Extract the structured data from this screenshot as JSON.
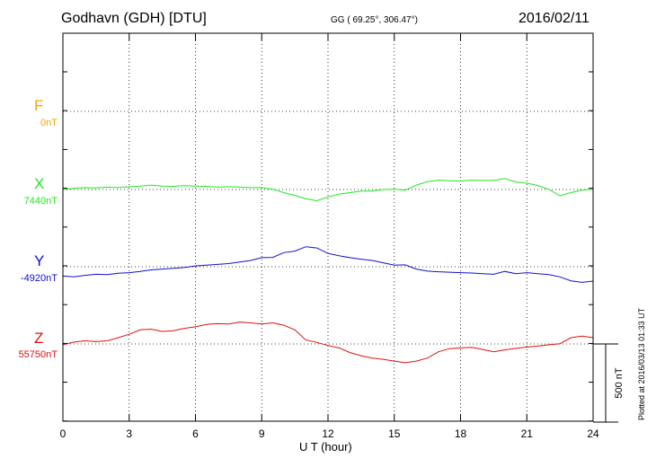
{
  "header": {
    "title": "Godhavn (GDH)  [DTU]",
    "coords": "GG ( 69.25°, 306.47°)",
    "date": "2016/02/11"
  },
  "footer": {
    "plotted": "Plotted at 2016/03/13 01:33 UT"
  },
  "colors": {
    "F": "#f5a500",
    "X": "#22e622",
    "Y": "#1010cc",
    "Z": "#e01010"
  },
  "chart_data": {
    "type": "line",
    "title": "Godhavn (GDH)  [DTU]",
    "xlabel": "U T (hour)",
    "ylabel": "",
    "xlim": [
      0,
      24
    ],
    "xticks": [
      0,
      3,
      6,
      9,
      12,
      15,
      18,
      21,
      24
    ],
    "grid": true,
    "scale_bar": {
      "label": "500 nT",
      "value_nT": 500
    },
    "series": [
      {
        "name": "F",
        "baseline_label": "0nT",
        "baseline_nT": 0,
        "x": [],
        "values": []
      },
      {
        "name": "X",
        "baseline_label": "7440nT",
        "baseline_nT": 7440,
        "x": [
          0,
          0.5,
          1,
          1.5,
          2,
          2.5,
          3,
          3.5,
          4,
          4.5,
          5,
          5.5,
          6,
          6.5,
          7,
          7.5,
          8,
          8.5,
          9,
          9.5,
          10,
          10.5,
          11,
          11.5,
          12,
          12.5,
          13,
          13.5,
          14,
          14.5,
          15,
          15.5,
          16,
          16.5,
          17,
          17.5,
          18,
          18.5,
          19,
          19.5,
          20,
          20.5,
          21,
          21.5,
          22,
          22.5,
          23,
          23.5,
          24
        ],
        "values": [
          7440,
          7448,
          7452,
          7450,
          7455,
          7452,
          7458,
          7462,
          7468,
          7462,
          7460,
          7465,
          7462,
          7460,
          7456,
          7458,
          7456,
          7452,
          7452,
          7442,
          7420,
          7402,
          7380,
          7368,
          7392,
          7410,
          7420,
          7430,
          7430,
          7440,
          7442,
          7436,
          7468,
          7490,
          7500,
          7496,
          7494,
          7500,
          7498,
          7498,
          7510,
          7488,
          7480,
          7466,
          7440,
          7400,
          7420,
          7436,
          7442
        ]
      },
      {
        "name": "Y",
        "baseline_label": "-4920nT",
        "baseline_nT": -4920,
        "x": [
          0,
          0.5,
          1,
          1.5,
          2,
          2.5,
          3,
          3.5,
          4,
          4.5,
          5,
          5.5,
          6,
          6.5,
          7,
          7.5,
          8,
          8.5,
          9,
          9.5,
          10,
          10.5,
          11,
          11.5,
          12,
          12.5,
          13,
          13.5,
          14,
          14.5,
          15,
          15.5,
          16,
          16.5,
          17,
          17.5,
          18,
          18.5,
          19,
          19.5,
          20,
          20.5,
          21,
          21.5,
          22,
          22.5,
          23,
          23.5,
          24
        ],
        "values": [
          -4980,
          -4985,
          -4975,
          -4968,
          -4970,
          -4962,
          -4958,
          -4950,
          -4940,
          -4935,
          -4930,
          -4925,
          -4915,
          -4910,
          -4905,
          -4900,
          -4890,
          -4880,
          -4862,
          -4860,
          -4830,
          -4820,
          -4792,
          -4800,
          -4835,
          -4850,
          -4862,
          -4872,
          -4880,
          -4895,
          -4910,
          -4908,
          -4935,
          -4948,
          -4952,
          -4955,
          -4958,
          -4960,
          -4965,
          -4968,
          -4950,
          -4965,
          -4958,
          -4965,
          -4970,
          -4985,
          -5010,
          -5020,
          -5012
        ]
      },
      {
        "name": "Z",
        "baseline_label": "55750nT",
        "baseline_nT": 55750,
        "x": [
          0,
          0.5,
          1,
          1.5,
          2,
          2.5,
          3,
          3.5,
          4,
          4.5,
          5,
          5.5,
          6,
          6.5,
          7,
          7.5,
          8,
          8.5,
          9,
          9.5,
          10,
          10.5,
          11,
          11.5,
          12,
          12.5,
          13,
          13.5,
          14,
          14.5,
          15,
          15.5,
          16,
          16.5,
          17,
          17.5,
          18,
          18.5,
          19,
          19.5,
          20,
          20.5,
          21,
          21.5,
          22,
          22.5,
          23,
          23.5,
          24
        ],
        "values": [
          55745,
          55762,
          55770,
          55765,
          55770,
          55790,
          55812,
          55840,
          55845,
          55830,
          55835,
          55850,
          55860,
          55875,
          55880,
          55878,
          55890,
          55885,
          55878,
          55885,
          55870,
          55840,
          55775,
          55760,
          55740,
          55725,
          55695,
          55675,
          55660,
          55652,
          55640,
          55630,
          55640,
          55660,
          55700,
          55720,
          55725,
          55728,
          55715,
          55700,
          55712,
          55722,
          55730,
          55736,
          55745,
          55752,
          55790,
          55800,
          55790
        ]
      }
    ]
  }
}
